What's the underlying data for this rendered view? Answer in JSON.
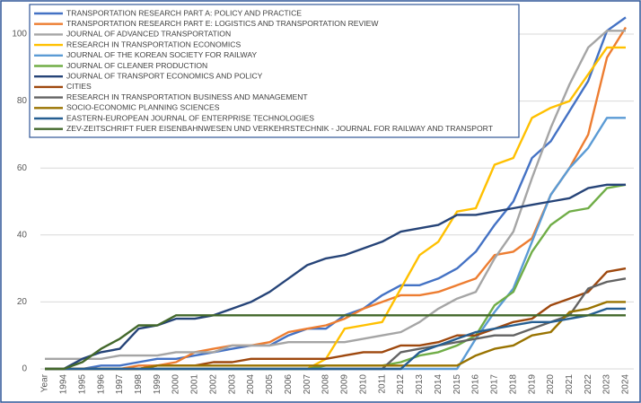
{
  "chart_data": {
    "type": "line",
    "categories": [
      "Year",
      "1994",
      "1995",
      "1996",
      "1997",
      "1998",
      "1999",
      "2000",
      "2001",
      "2002",
      "2003",
      "2004",
      "2005",
      "2006",
      "2007",
      "2008",
      "2009",
      "2010",
      "2011",
      "2012",
      "2013",
      "2014",
      "2015",
      "2016",
      "2017",
      "2018",
      "2019",
      "2020",
      "2021",
      "2022",
      "2023",
      "2024"
    ],
    "ylim": [
      0,
      105
    ],
    "yticks": [
      0,
      20,
      40,
      60,
      80,
      100
    ],
    "grid": true,
    "legend": "top-left",
    "series": [
      {
        "name": "TRANSPORTATION RESEARCH PART A: POLICY AND PRACTICE",
        "color": "#4472c4",
        "values": [
          0,
          0,
          0,
          1,
          1,
          2,
          3,
          3,
          4,
          5,
          6,
          7,
          7,
          10,
          12,
          12,
          16,
          18,
          22,
          25,
          25,
          27,
          30,
          35,
          43,
          50,
          63,
          68,
          77,
          86,
          101,
          105
        ]
      },
      {
        "name": "TRANSPORTATION RESEARCH PART E: LOGISTICS AND TRANSPORTATION REVIEW",
        "color": "#ed7d31",
        "values": [
          0,
          0,
          0,
          0,
          0,
          1,
          1,
          2,
          5,
          6,
          7,
          7,
          8,
          11,
          12,
          13,
          15,
          18,
          20,
          22,
          22,
          23,
          25,
          27,
          34,
          35,
          39,
          52,
          60,
          70,
          93,
          102
        ]
      },
      {
        "name": "JOURNAL OF ADVANCED TRANSPORTATION",
        "color": "#a5a5a5",
        "values": [
          3,
          3,
          3,
          3,
          4,
          4,
          4,
          5,
          5,
          5,
          7,
          7,
          7,
          8,
          8,
          8,
          8,
          9,
          10,
          11,
          14,
          18,
          21,
          23,
          33,
          41,
          57,
          72,
          85,
          96,
          101,
          101
        ]
      },
      {
        "name": "RESEARCH IN TRANSPORTATION ECONOMICS",
        "color": "#ffc000",
        "values": [
          0,
          0,
          0,
          0,
          0,
          0,
          0,
          0,
          0,
          0,
          0,
          0,
          0,
          0,
          0,
          3,
          12,
          13,
          14,
          24,
          34,
          38,
          47,
          48,
          61,
          63,
          75,
          78,
          80,
          88,
          96,
          96
        ]
      },
      {
        "name": "JOURNAL OF THE KOREAN SOCIETY FOR RAILWAY",
        "color": "#5b9bd5",
        "values": [
          0,
          0,
          0,
          0,
          0,
          0,
          0,
          0,
          0,
          0,
          0,
          0,
          0,
          0,
          0,
          0,
          0,
          0,
          0,
          0,
          0,
          0,
          0,
          9,
          17,
          24,
          38,
          52,
          60,
          66,
          75,
          75
        ]
      },
      {
        "name": "JOURNAL OF CLEANER PRODUCTION",
        "color": "#70ad47",
        "values": [
          0,
          0,
          0,
          0,
          0,
          0,
          0,
          0,
          0,
          0,
          0,
          0,
          0,
          0,
          0,
          1,
          1,
          1,
          1,
          2,
          4,
          5,
          7,
          10,
          19,
          23,
          35,
          43,
          47,
          48,
          54,
          55
        ]
      },
      {
        "name": "JOURNAL OF TRANSPORT ECONOMICS AND POLICY",
        "color": "#264478",
        "values": [
          0,
          0,
          3,
          5,
          6,
          12,
          13,
          15,
          15,
          16,
          18,
          20,
          23,
          27,
          31,
          33,
          34,
          36,
          38,
          41,
          42,
          43,
          46,
          46,
          47,
          48,
          49,
          50,
          51,
          54,
          55,
          55
        ]
      },
      {
        "name": "CITIES",
        "color": "#9e480e",
        "values": [
          0,
          0,
          0,
          0,
          0,
          0,
          1,
          1,
          1,
          2,
          2,
          3,
          3,
          3,
          3,
          3,
          4,
          5,
          5,
          7,
          7,
          8,
          10,
          10,
          12,
          14,
          15,
          19,
          21,
          23,
          29,
          30
        ]
      },
      {
        "name": "RESEARCH IN TRANSPORTATION BUSINESS AND MANAGEMENT",
        "color": "#636363",
        "values": [
          0,
          0,
          0,
          0,
          0,
          0,
          0,
          0,
          0,
          0,
          0,
          0,
          0,
          0,
          0,
          0,
          0,
          0,
          0,
          5,
          6,
          7,
          8,
          9,
          10,
          10,
          12,
          14,
          16,
          24,
          26,
          27
        ]
      },
      {
        "name": "SOCIO-ECONOMIC PLANNING SCIENCES",
        "color": "#997300",
        "values": [
          0,
          0,
          0,
          0,
          0,
          0,
          1,
          1,
          1,
          1,
          1,
          1,
          1,
          1,
          1,
          1,
          1,
          1,
          1,
          1,
          1,
          1,
          1,
          4,
          6,
          7,
          10,
          11,
          17,
          18,
          20,
          20
        ]
      },
      {
        "name": "EASTERN-EUROPEAN JOURNAL OF ENTERPRISE TECHNOLOGIES",
        "color": "#255e91",
        "values": [
          0,
          0,
          0,
          0,
          0,
          0,
          0,
          0,
          0,
          0,
          0,
          0,
          0,
          0,
          0,
          0,
          0,
          0,
          0,
          0,
          5,
          7,
          9,
          11,
          12,
          13,
          14,
          14,
          15,
          16,
          18,
          18
        ]
      },
      {
        "name": "ZEV-ZEITSCHRIFT FUER EISENBAHNWESEN UND VERKEHRSTECHNIK - JOURNAL FOR RAILWAY AND TRANSPORT",
        "color": "#43682b",
        "values": [
          0,
          0,
          2,
          6,
          9,
          13,
          13,
          16,
          16,
          16,
          16,
          16,
          16,
          16,
          16,
          16,
          16,
          16,
          16,
          16,
          16,
          16,
          16,
          16,
          16,
          16,
          16,
          16,
          16,
          16,
          16,
          16
        ]
      }
    ]
  }
}
